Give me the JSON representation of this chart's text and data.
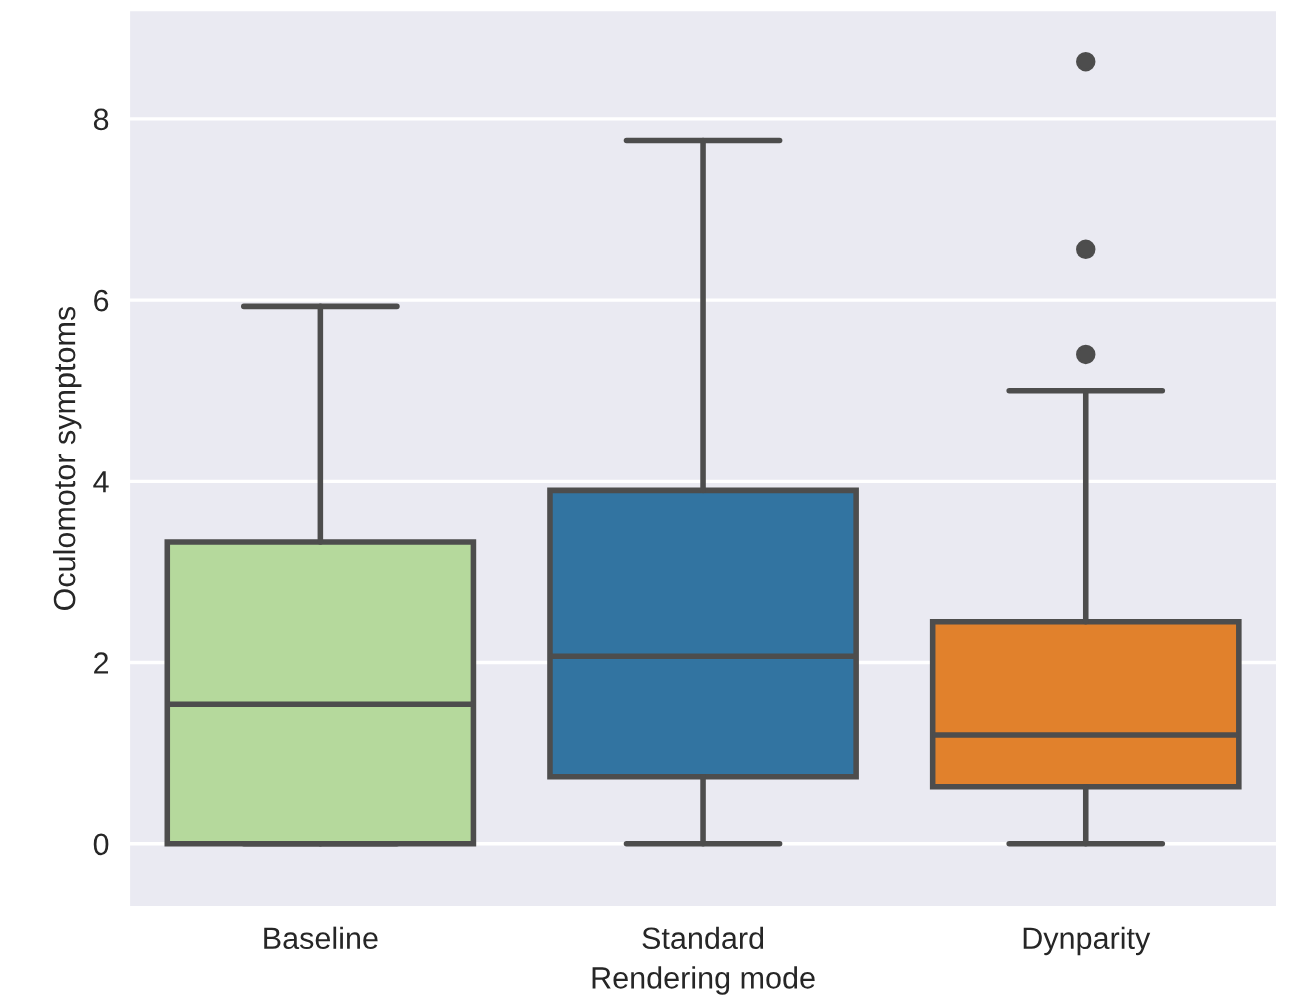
{
  "chart_data": {
    "type": "box",
    "xlabel": "Rendering mode",
    "ylabel": "Oculomotor symptoms",
    "categories": [
      "Baseline",
      "Standard",
      "Dynparity"
    ],
    "colors": [
      "#b5d99c",
      "#3274a1",
      "#e1812c"
    ],
    "boxes": [
      {
        "low": 0,
        "q1": 0,
        "median": 1.54,
        "q3": 3.33,
        "high": 5.93
      },
      {
        "low": 0,
        "q1": 0.74,
        "median": 2.07,
        "q3": 3.9,
        "high": 7.76
      },
      {
        "low": 0,
        "q1": 0.63,
        "median": 1.2,
        "q3": 2.45,
        "high": 5.0,
        "outliers": [
          5.4,
          6.56,
          8.63
        ]
      }
    ],
    "ylim": [
      -0.7,
      9.2
    ],
    "yticks": [
      0,
      2,
      4,
      6,
      8
    ],
    "grid": "y"
  }
}
